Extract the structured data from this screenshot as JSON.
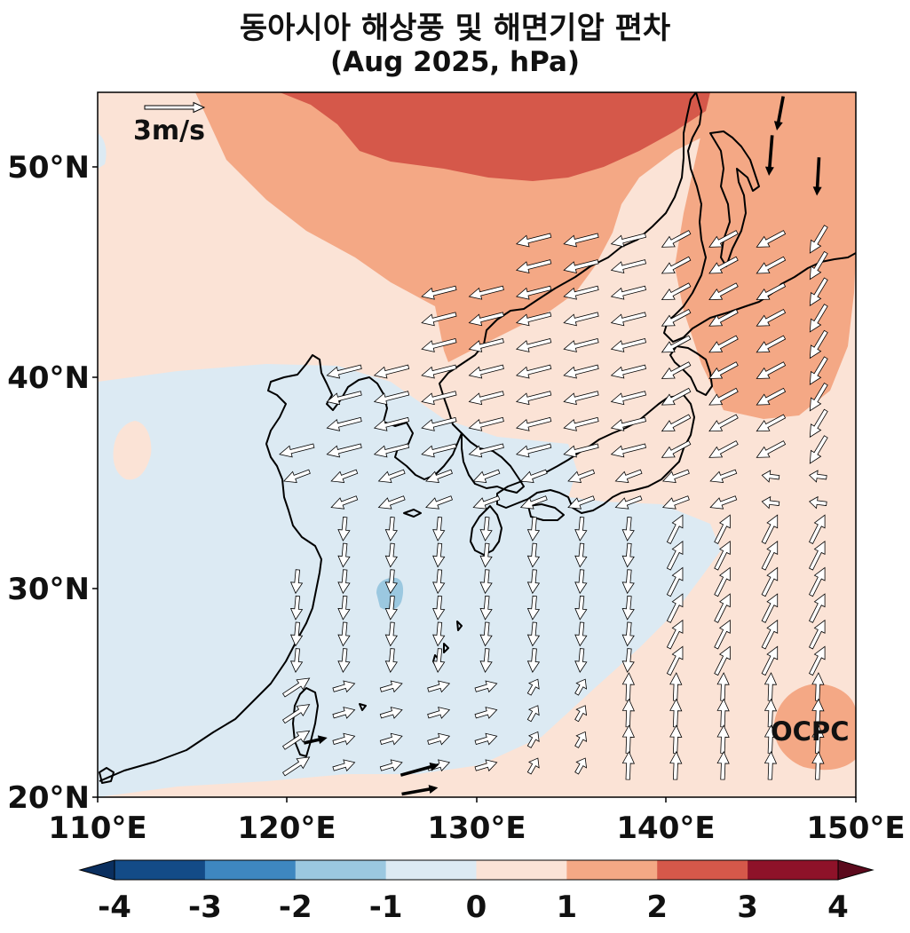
{
  "title": "동아시아 해상풍 및 해면기압 편차",
  "subtitle": "(Aug 2025, hPa)",
  "reference_vector_label": "3m/s",
  "watermark": "OCPC",
  "map_extent": {
    "lon": [
      110,
      150
    ],
    "lat": [
      20,
      53.5
    ]
  },
  "lat_ticks": [
    "50°N",
    "40°N",
    "30°N",
    "20°N"
  ],
  "lon_ticks": [
    "110°E",
    "120°E",
    "130°E",
    "140°E",
    "150°E"
  ],
  "colorbar": {
    "ticks": [
      "-4",
      "-3",
      "-2",
      "-1",
      "0",
      "1",
      "2",
      "3",
      "4"
    ],
    "colors": [
      "#134b87",
      "#3e87c0",
      "#9bc8e0",
      "#dceaf3",
      "#fbe3d6",
      "#f4a885",
      "#d5584a",
      "#8e1229"
    ],
    "extend": "both"
  },
  "field_colors": {
    "minus_2_to_1": "#9bc8e0",
    "minus_1_to_0": "#dceaf3",
    "zero_to_1": "#fbe3d6",
    "one_to_2": "#f4a885",
    "two_to_3": "#d5584a"
  },
  "coastline_color": "#000000",
  "arrow_colors": {
    "fill": "#ffffff",
    "edge": "#000000",
    "strong": "#000000"
  }
}
